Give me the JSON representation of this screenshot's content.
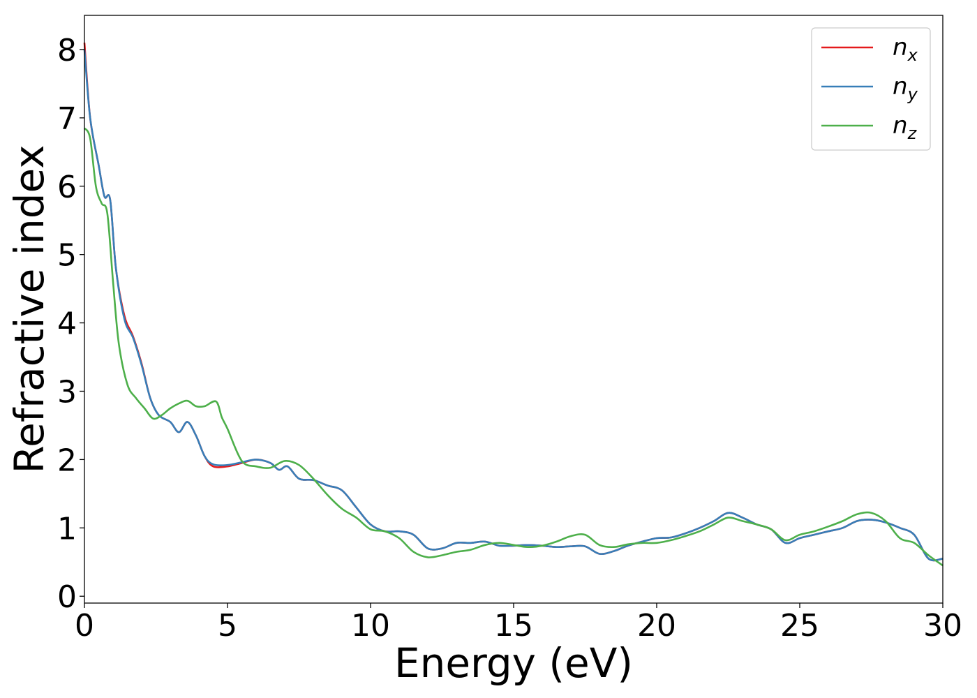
{
  "chart_data": {
    "type": "line",
    "title": "",
    "xlabel": "Energy (eV)",
    "ylabel": "Refractive index",
    "xlim": [
      0,
      30
    ],
    "ylim": [
      -0.1,
      8.5
    ],
    "xticks": [
      0,
      5,
      10,
      15,
      20,
      25,
      30
    ],
    "yticks": [
      0,
      1,
      2,
      3,
      4,
      5,
      6,
      7,
      8
    ],
    "grid": false,
    "legend_position": "top-right",
    "series": [
      {
        "name": "n_x",
        "legend_base": "n",
        "legend_sub": "x",
        "color": "#e41a1c",
        "x": [
          0,
          0.2,
          0.5,
          0.7,
          0.9,
          1.1,
          1.4,
          1.7,
          2.0,
          2.3,
          2.6,
          3.0,
          3.3,
          3.6,
          3.9,
          4.2,
          4.5,
          5.0,
          5.5,
          6.0,
          6.5,
          6.8,
          7.1,
          7.5,
          8.0,
          8.5,
          9.0,
          9.5,
          10.0,
          10.5,
          11.0,
          11.5,
          12.0,
          12.5,
          13.0,
          13.5,
          14.0,
          14.5,
          15.0,
          15.5,
          16.0,
          16.5,
          17.0,
          17.5,
          18.0,
          18.5,
          19.0,
          19.5,
          20.0,
          20.5,
          21.0,
          21.5,
          22.0,
          22.5,
          23.0,
          23.5,
          24.0,
          24.5,
          25.0,
          25.5,
          26.0,
          26.5,
          27.0,
          27.5,
          28.0,
          28.5,
          29.0,
          29.5,
          30.0
        ],
        "y": [
          8.1,
          7.0,
          6.3,
          5.85,
          5.8,
          4.8,
          4.1,
          3.8,
          3.4,
          2.9,
          2.65,
          2.55,
          2.4,
          2.55,
          2.35,
          2.05,
          1.9,
          1.9,
          1.95,
          2.0,
          1.95,
          1.85,
          1.9,
          1.72,
          1.7,
          1.62,
          1.55,
          1.3,
          1.05,
          0.95,
          0.95,
          0.9,
          0.7,
          0.7,
          0.78,
          0.78,
          0.8,
          0.74,
          0.74,
          0.75,
          0.74,
          0.72,
          0.73,
          0.73,
          0.62,
          0.66,
          0.74,
          0.8,
          0.85,
          0.86,
          0.92,
          1.0,
          1.1,
          1.22,
          1.15,
          1.05,
          0.98,
          0.78,
          0.85,
          0.9,
          0.95,
          1.0,
          1.1,
          1.12,
          1.08,
          1.0,
          0.9,
          0.55,
          0.55
        ]
      },
      {
        "name": "n_y",
        "legend_base": "n",
        "legend_sub": "y",
        "color": "#377eb8",
        "x": [
          0,
          0.2,
          0.5,
          0.7,
          0.9,
          1.1,
          1.4,
          1.7,
          2.0,
          2.3,
          2.6,
          3.0,
          3.3,
          3.6,
          3.9,
          4.2,
          4.5,
          5.0,
          5.5,
          6.0,
          6.5,
          6.8,
          7.1,
          7.5,
          8.0,
          8.5,
          9.0,
          9.5,
          10.0,
          10.5,
          11.0,
          11.5,
          12.0,
          12.5,
          13.0,
          13.5,
          14.0,
          14.5,
          15.0,
          15.5,
          16.0,
          16.5,
          17.0,
          17.5,
          18.0,
          18.5,
          19.0,
          19.5,
          20.0,
          20.5,
          21.0,
          21.5,
          22.0,
          22.5,
          23.0,
          23.5,
          24.0,
          24.5,
          25.0,
          25.5,
          26.0,
          26.5,
          27.0,
          27.5,
          28.0,
          28.5,
          29.0,
          29.5,
          30.0
        ],
        "y": [
          8.0,
          7.0,
          6.3,
          5.85,
          5.8,
          4.8,
          4.05,
          3.78,
          3.38,
          2.9,
          2.65,
          2.55,
          2.4,
          2.55,
          2.35,
          2.05,
          1.93,
          1.92,
          1.96,
          2.0,
          1.95,
          1.85,
          1.9,
          1.72,
          1.7,
          1.62,
          1.55,
          1.3,
          1.05,
          0.95,
          0.95,
          0.9,
          0.7,
          0.7,
          0.78,
          0.78,
          0.8,
          0.74,
          0.74,
          0.75,
          0.74,
          0.72,
          0.73,
          0.73,
          0.62,
          0.66,
          0.74,
          0.8,
          0.85,
          0.86,
          0.92,
          1.0,
          1.1,
          1.22,
          1.15,
          1.05,
          0.98,
          0.78,
          0.85,
          0.9,
          0.95,
          1.0,
          1.1,
          1.12,
          1.08,
          1.0,
          0.9,
          0.55,
          0.55
        ]
      },
      {
        "name": "n_z",
        "legend_base": "n",
        "legend_sub": "z",
        "color": "#4daf4a",
        "x": [
          0,
          0.2,
          0.4,
          0.6,
          0.8,
          1.0,
          1.2,
          1.5,
          1.8,
          2.1,
          2.4,
          2.7,
          3.0,
          3.3,
          3.6,
          3.9,
          4.2,
          4.6,
          4.8,
          5.0,
          5.5,
          6.0,
          6.5,
          7.0,
          7.5,
          8.0,
          8.5,
          9.0,
          9.5,
          10.0,
          10.5,
          11.0,
          11.5,
          12.0,
          12.5,
          13.0,
          13.5,
          14.0,
          14.5,
          15.0,
          15.5,
          16.0,
          16.5,
          17.0,
          17.5,
          18.0,
          18.5,
          19.0,
          19.5,
          20.0,
          20.5,
          21.0,
          21.5,
          22.0,
          22.5,
          23.0,
          23.5,
          24.0,
          24.5,
          25.0,
          25.5,
          26.0,
          26.5,
          27.0,
          27.5,
          28.0,
          28.5,
          29.0,
          29.5,
          30.0
        ],
        "y": [
          6.85,
          6.7,
          6.0,
          5.75,
          5.6,
          4.6,
          3.7,
          3.1,
          2.9,
          2.75,
          2.6,
          2.65,
          2.75,
          2.82,
          2.86,
          2.78,
          2.78,
          2.85,
          2.62,
          2.45,
          1.98,
          1.9,
          1.88,
          1.98,
          1.92,
          1.72,
          1.48,
          1.28,
          1.15,
          0.98,
          0.95,
          0.85,
          0.65,
          0.57,
          0.6,
          0.65,
          0.68,
          0.75,
          0.78,
          0.75,
          0.72,
          0.74,
          0.8,
          0.88,
          0.9,
          0.75,
          0.72,
          0.76,
          0.78,
          0.78,
          0.82,
          0.88,
          0.95,
          1.05,
          1.15,
          1.1,
          1.05,
          0.98,
          0.82,
          0.9,
          0.95,
          1.02,
          1.1,
          1.2,
          1.22,
          1.1,
          0.85,
          0.78,
          0.6,
          0.45
        ]
      }
    ]
  }
}
